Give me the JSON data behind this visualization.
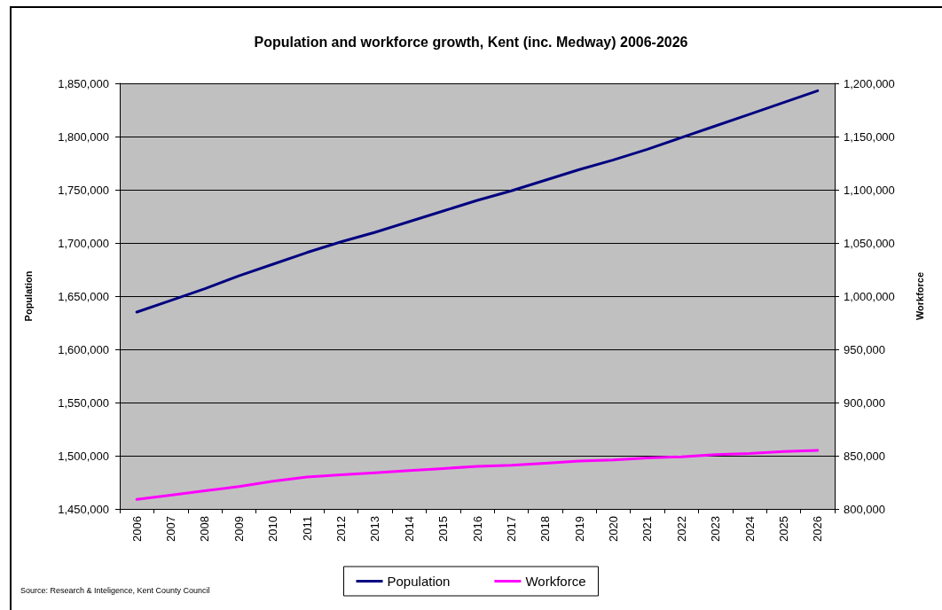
{
  "chart_data": {
    "type": "line",
    "title": "Population and workforce growth, Kent (inc. Medway) 2006-2026",
    "ylabel": "Population",
    "y2label": "Workforce",
    "categories": [
      "2006",
      "2007",
      "2008",
      "2009",
      "2010",
      "2011",
      "2012",
      "2013",
      "2014",
      "2015",
      "2016",
      "2017",
      "2018",
      "2019",
      "2020",
      "2021",
      "2022",
      "2023",
      "2024",
      "2025",
      "2026"
    ],
    "series": [
      {
        "name": "Population",
        "color": "#000080",
        "values": [
          1635000,
          1646000,
          1657000,
          1669000,
          1680000,
          1691000,
          1701000,
          1710000,
          1720000,
          1730000,
          1740000,
          1749000,
          1759000,
          1769000,
          1778000,
          1788000,
          1799000,
          1810000,
          1821000,
          1832000,
          1843000
        ]
      },
      {
        "name": "Workforce",
        "color": "#ff00ff",
        "axis": "y2",
        "values": [
          809000,
          813000,
          817000,
          821000,
          826000,
          830000,
          832000,
          834000,
          836000,
          838000,
          840000,
          841000,
          843000,
          845000,
          846000,
          848000,
          849000,
          851000,
          852000,
          854000,
          855000
        ]
      }
    ],
    "ylim": [
      1450000,
      1850000
    ],
    "yticks": [
      {
        "value": 1450000,
        "label": "1,450,000"
      },
      {
        "value": 1500000,
        "label": "1,500,000"
      },
      {
        "value": 1550000,
        "label": "1,550,000"
      },
      {
        "value": 1600000,
        "label": "1,600,000"
      },
      {
        "value": 1650000,
        "label": "1,650,000"
      },
      {
        "value": 1700000,
        "label": "1,700,000"
      },
      {
        "value": 1750000,
        "label": "1,750,000"
      },
      {
        "value": 1800000,
        "label": "1,800,000"
      },
      {
        "value": 1850000,
        "label": "1,850,000"
      }
    ],
    "y2lim": [
      800000,
      1200000
    ],
    "y2ticks": [
      {
        "value": 800000,
        "label": "800,000"
      },
      {
        "value": 850000,
        "label": "850,000"
      },
      {
        "value": 900000,
        "label": "900,000"
      },
      {
        "value": 950000,
        "label": "950,000"
      },
      {
        "value": 1000000,
        "label": "1,000,000"
      },
      {
        "value": 1050000,
        "label": "1,050,000"
      },
      {
        "value": 1100000,
        "label": "1,100,000"
      },
      {
        "value": 1150000,
        "label": "1,150,000"
      },
      {
        "value": 1200000,
        "label": "1,200,000"
      }
    ],
    "grid": "y",
    "legend": "bottom",
    "marker": "none",
    "line_style": "solid",
    "annotations": [
      "Source: Research & Inteligence, Kent County Council"
    ]
  }
}
